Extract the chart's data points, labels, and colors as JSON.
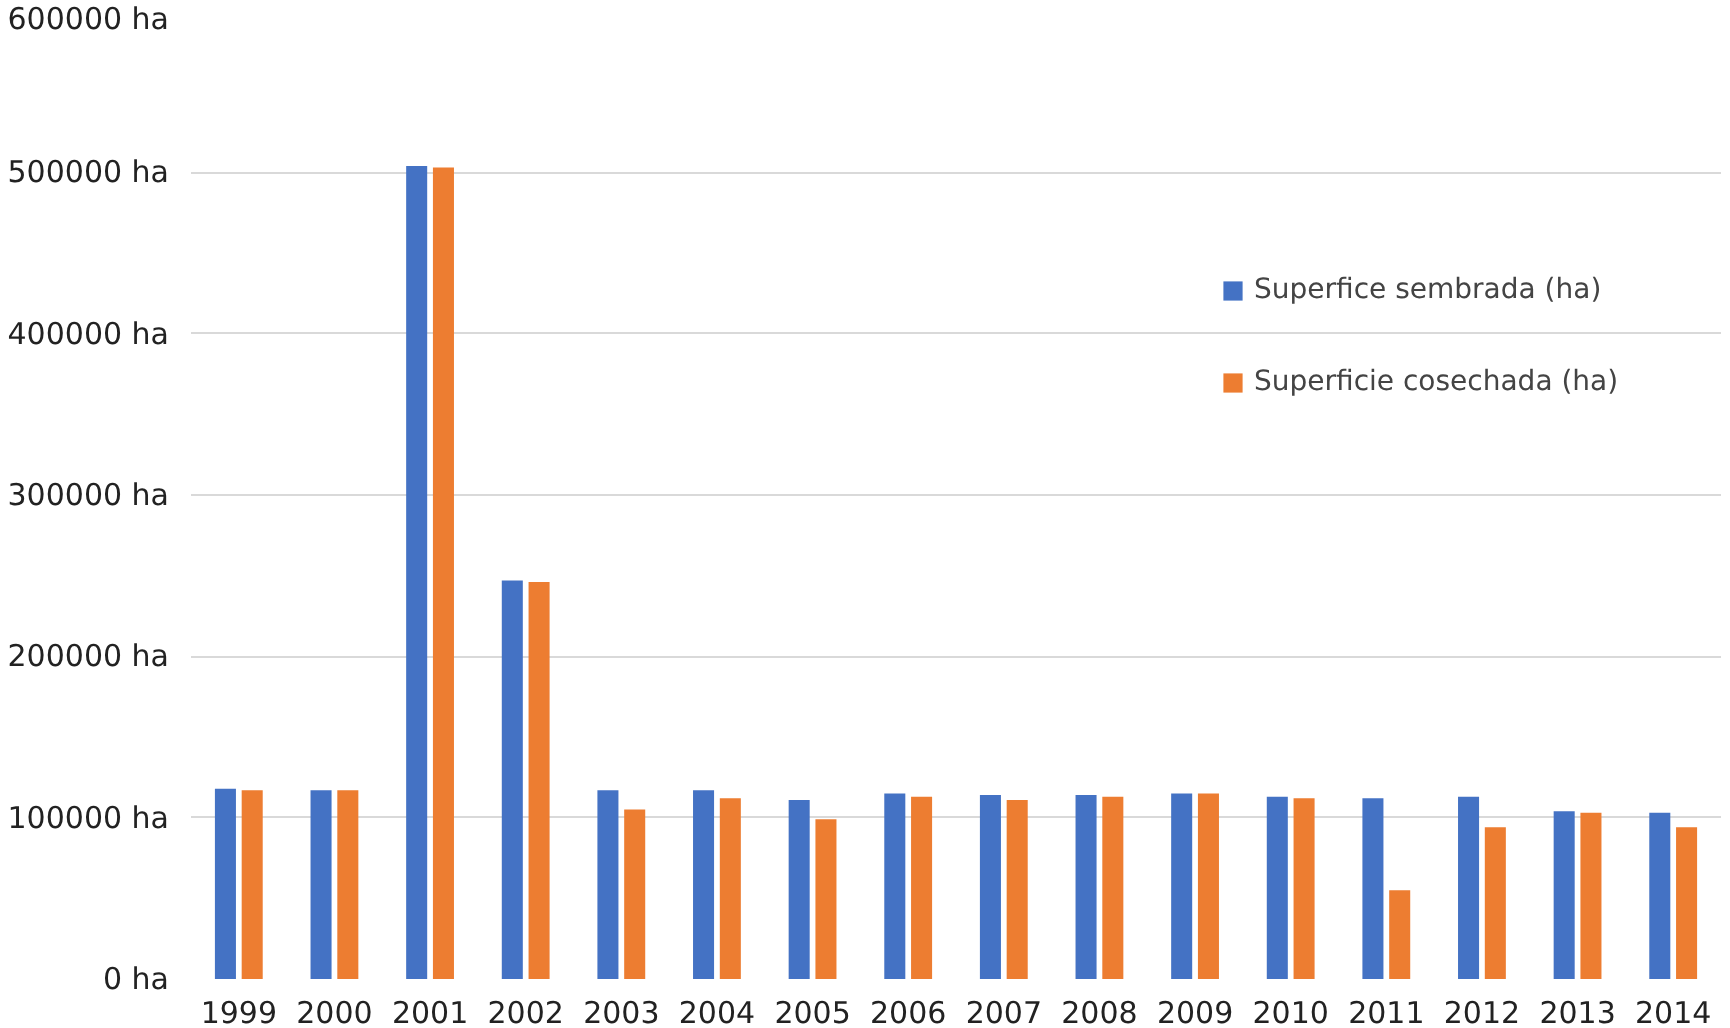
{
  "chart_data": {
    "type": "bar",
    "categories": [
      "1999",
      "2000",
      "2001",
      "2002",
      "2003",
      "2004",
      "2005",
      "2006",
      "2007",
      "2008",
      "2009",
      "2010",
      "2011",
      "2012",
      "2013",
      "2014"
    ],
    "series": [
      {
        "name": "Superfice sembrada (ha)",
        "color": "#4472c4",
        "values": [
          118000,
          117000,
          504000,
          247000,
          117000,
          117000,
          111000,
          115000,
          114000,
          114000,
          115000,
          113000,
          112000,
          113000,
          104000,
          103000
        ]
      },
      {
        "name": "Superficie cosechada (ha)",
        "color": "#ed7d31",
        "values": [
          117000,
          117000,
          503000,
          246000,
          105000,
          112000,
          99000,
          113000,
          111000,
          113000,
          115000,
          112000,
          55000,
          94000,
          103000,
          94000
        ]
      }
    ],
    "ylim": [
      0,
      600000
    ],
    "yticks": [
      {
        "value": 0,
        "label": "0 ha"
      },
      {
        "value": 100000,
        "label": "100000 ha"
      },
      {
        "value": 200000,
        "label": "200000 ha"
      },
      {
        "value": 300000,
        "label": "300000 ha"
      },
      {
        "value": 400000,
        "label": "400000 ha"
      },
      {
        "value": 500000,
        "label": "500000 ha"
      },
      {
        "value": 600000,
        "label": "600000 ha"
      }
    ],
    "grid": "y",
    "legend": "top right"
  }
}
